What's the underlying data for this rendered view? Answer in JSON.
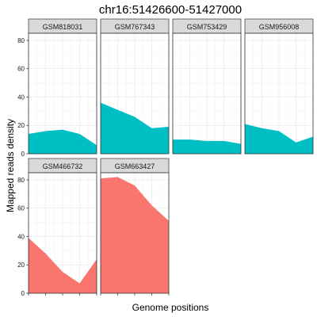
{
  "chart_data": {
    "type": "area",
    "title": "chr16:51426600-51427000",
    "xlabel": "Genome positions",
    "ylabel": "Mapped reads density",
    "ylim": [
      0,
      85
    ],
    "yticks": [
      0,
      20,
      40,
      60,
      80
    ],
    "x": [
      0,
      1,
      2,
      3,
      4
    ],
    "grid": true,
    "panels": [
      {
        "name": "GSM818031",
        "color": "#00BFC4",
        "values": [
          14,
          16,
          17,
          14,
          6
        ]
      },
      {
        "name": "GSM767343",
        "color": "#00BFC4",
        "values": [
          36,
          31,
          26,
          18,
          19
        ]
      },
      {
        "name": "GSM753429",
        "color": "#00BFC4",
        "values": [
          10,
          10,
          9,
          9,
          7
        ]
      },
      {
        "name": "GSM956008",
        "color": "#00BFC4",
        "values": [
          21,
          18,
          16,
          8,
          12
        ]
      },
      {
        "name": "GSM466732",
        "color": "#F8766D",
        "values": [
          39,
          28,
          15,
          7,
          24
        ]
      },
      {
        "name": "GSM663427",
        "color": "#F8766D",
        "values": [
          81,
          82,
          76,
          62,
          51
        ]
      }
    ]
  }
}
